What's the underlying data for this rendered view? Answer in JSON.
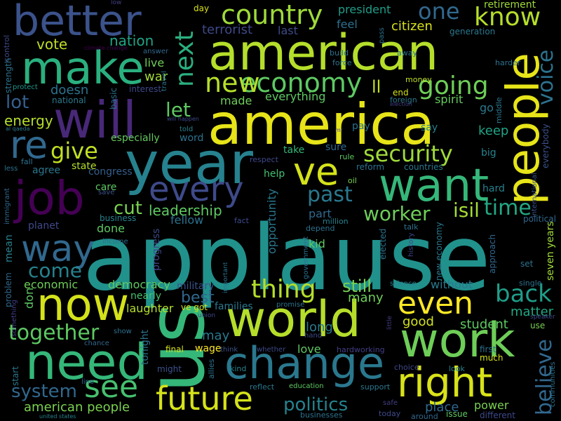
{
  "words": [
    {
      "text": "applause",
      "color": "#21918c"
    },
    {
      "text": "america",
      "color": "#e7e419"
    },
    {
      "text": "american",
      "color": "#b5de2b"
    },
    {
      "text": "us",
      "color": "#35b779"
    },
    {
      "text": "year",
      "color": "#26828e"
    },
    {
      "text": "will",
      "color": "#482878"
    },
    {
      "text": "people",
      "color": "#e7e419"
    },
    {
      "text": "world",
      "color": "#b5de2b"
    },
    {
      "text": "work",
      "color": "#6ece58"
    },
    {
      "text": "change",
      "color": "#2a788e"
    },
    {
      "text": "need",
      "color": "#35b779"
    },
    {
      "text": "now",
      "color": "#d4e21a"
    },
    {
      "text": "want",
      "color": "#35b779"
    },
    {
      "text": "make",
      "color": "#2ab07f"
    },
    {
      "text": "right",
      "color": "#d8e219"
    },
    {
      "text": "job",
      "color": "#440154"
    },
    {
      "text": "better",
      "color": "#3b528b"
    },
    {
      "text": "ve",
      "color": "#d4e21a"
    },
    {
      "text": "future",
      "color": "#d4e21a"
    },
    {
      "text": "re",
      "color": "#31688e"
    },
    {
      "text": "every",
      "color": "#3e4a89"
    },
    {
      "text": "way",
      "color": "#31688e"
    },
    {
      "text": "see",
      "color": "#46c06f"
    },
    {
      "text": "country",
      "color": "#9fda3a"
    },
    {
      "text": "even",
      "color": "#fde725"
    },
    {
      "text": "security",
      "color": "#a0da39"
    },
    {
      "text": "economy",
      "color": "#5ec962"
    },
    {
      "text": "going",
      "color": "#6ece58"
    },
    {
      "text": "thing",
      "color": "#b5de2b"
    },
    {
      "text": "believe",
      "color": "#31688e"
    },
    {
      "text": "give",
      "color": "#c2df23"
    },
    {
      "text": "back",
      "color": "#1f9e89"
    },
    {
      "text": "past",
      "color": "#2a788e"
    },
    {
      "text": "one",
      "color": "#31688e"
    },
    {
      "text": "know",
      "color": "#b5de2b"
    },
    {
      "text": "next",
      "color": "#2ab07f"
    },
    {
      "text": "new",
      "color": "#b5de2b"
    },
    {
      "text": "time",
      "color": "#22a884"
    },
    {
      "text": "voice",
      "color": "#2c728e"
    },
    {
      "text": "together",
      "color": "#5ec962"
    },
    {
      "text": "politics",
      "color": "#26828e"
    },
    {
      "text": "system",
      "color": "#31688e"
    },
    {
      "text": "isil",
      "color": "#a5db36"
    },
    {
      "text": "worker",
      "color": "#6ece58"
    },
    {
      "text": "cut",
      "color": "#7ad151"
    },
    {
      "text": "come",
      "color": "#26828e"
    },
    {
      "text": "let",
      "color": "#5ec962"
    },
    {
      "text": "still",
      "color": "#7ad151"
    },
    {
      "text": "ll",
      "color": "#c2df23"
    },
    {
      "text": "leadership",
      "color": "#5ec962"
    },
    {
      "text": "lot",
      "color": "#355f8d"
    },
    {
      "text": "energy",
      "color": "#b5de2b"
    },
    {
      "text": "vote",
      "color": "#bddf26"
    },
    {
      "text": "nation",
      "color": "#20a486"
    },
    {
      "text": "terrorist",
      "color": "#3e4989"
    },
    {
      "text": "last",
      "color": "#3e4a89"
    },
    {
      "text": "president",
      "color": "#1f9e89"
    },
    {
      "text": "citizen",
      "color": "#d8e219"
    },
    {
      "text": "feel",
      "color": "#2c728e"
    },
    {
      "text": "generation",
      "color": "#2a788e"
    },
    {
      "text": "retirement",
      "color": "#9fda3a"
    },
    {
      "text": "day",
      "color": "#d8e219"
    },
    {
      "text": "low",
      "color": "#433e85"
    },
    {
      "text": "control",
      "color": "#3e4989"
    },
    {
      "text": "climate change",
      "color": "#440154"
    },
    {
      "text": "answer",
      "color": "#31688e"
    },
    {
      "text": "live",
      "color": "#6ece58"
    },
    {
      "text": "war",
      "color": "#a0da39"
    },
    {
      "text": "doesn",
      "color": "#2c728e"
    },
    {
      "text": "interest",
      "color": "#3e4989"
    },
    {
      "text": "national",
      "color": "#2a788e"
    },
    {
      "text": "protect",
      "color": "#1f968b"
    },
    {
      "text": "strength",
      "color": "#2c728e"
    },
    {
      "text": "basic",
      "color": "#2c728e"
    },
    {
      "text": "middle",
      "color": "#2a788e"
    },
    {
      "text": "made",
      "color": "#6ece58"
    },
    {
      "text": "everything",
      "color": "#5ec962"
    },
    {
      "text": "money",
      "color": "#bddf26"
    },
    {
      "text": "end",
      "color": "#d4e21a"
    },
    {
      "text": "foreign",
      "color": "#2a788e"
    },
    {
      "text": "spirit",
      "color": "#65cb5e"
    },
    {
      "text": "election",
      "color": "#433e85"
    },
    {
      "text": "pay",
      "color": "#2c728e"
    },
    {
      "text": "say",
      "color": "#26828e"
    },
    {
      "text": "keep",
      "color": "#20a486"
    },
    {
      "text": "go",
      "color": "#2a788e"
    },
    {
      "text": "everybody",
      "color": "#3b528b"
    },
    {
      "text": "especially",
      "color": "#65cb5e"
    },
    {
      "text": "word",
      "color": "#2c728e"
    },
    {
      "text": "sure",
      "color": "#31688e"
    },
    {
      "text": "take",
      "color": "#35b779"
    },
    {
      "text": "big",
      "color": "#26828e"
    },
    {
      "text": "state",
      "color": "#b5de2b"
    },
    {
      "text": "agree",
      "color": "#2a788e"
    },
    {
      "text": "congress",
      "color": "#355f8d"
    },
    {
      "text": "help",
      "color": "#46c06f"
    },
    {
      "text": "reform",
      "color": "#2c728e"
    },
    {
      "text": "countries",
      "color": "#2a788e"
    },
    {
      "text": "respect",
      "color": "#3e4989"
    },
    {
      "text": "rule",
      "color": "#5ec962"
    },
    {
      "text": "oil",
      "color": "#7ad151"
    },
    {
      "text": "care",
      "color": "#5ec962"
    },
    {
      "text": "save",
      "color": "#3b528b"
    },
    {
      "text": "immigrant",
      "color": "#31688e"
    },
    {
      "text": "planet",
      "color": "#3e4989"
    },
    {
      "text": "business",
      "color": "#26828e"
    },
    {
      "text": "done",
      "color": "#5ec962"
    },
    {
      "text": "fellow",
      "color": "#2c728e"
    },
    {
      "text": "fact",
      "color": "#3e4989"
    },
    {
      "text": "part",
      "color": "#31688e"
    },
    {
      "text": "million",
      "color": "#26828e"
    },
    {
      "text": "depend",
      "color": "#2c728e"
    },
    {
      "text": "opportunity",
      "color": "#2a788e"
    },
    {
      "text": "elected",
      "color": "#2c728e"
    },
    {
      "text": "talk",
      "color": "#2c728e"
    },
    {
      "text": "hard",
      "color": "#26828e"
    },
    {
      "text": "international",
      "color": "#3b528b"
    },
    {
      "text": "political",
      "color": "#31688e"
    },
    {
      "text": "mean",
      "color": "#26828e"
    },
    {
      "text": "income",
      "color": "#2c728e"
    },
    {
      "text": "progress",
      "color": "#3e4989"
    },
    {
      "text": "kid",
      "color": "#5ec962"
    },
    {
      "text": "history",
      "color": "#3e4989"
    },
    {
      "text": "new economy",
      "color": "#2a788e"
    },
    {
      "text": "approach",
      "color": "#31688e"
    },
    {
      "text": "set",
      "color": "#2c728e"
    },
    {
      "text": "seven years",
      "color": "#a0da39"
    },
    {
      "text": "economic",
      "color": "#6ece58"
    },
    {
      "text": "democracy",
      "color": "#5ec962"
    },
    {
      "text": "military",
      "color": "#3b528b"
    },
    {
      "text": "nearly",
      "color": "#46c06f"
    },
    {
      "text": "best",
      "color": "#31688e"
    },
    {
      "text": "government",
      "color": "#2c728e"
    },
    {
      "text": "science",
      "color": "#26828e"
    },
    {
      "text": "without",
      "color": "#2a788e"
    },
    {
      "text": "single",
      "color": "#2c728e"
    },
    {
      "text": "many",
      "color": "#6ece58"
    },
    {
      "text": "matter",
      "color": "#22a884"
    },
    {
      "text": "problem",
      "color": "#31688e"
    },
    {
      "text": "don",
      "color": "#5ec962"
    },
    {
      "text": "something",
      "color": "#433e85"
    },
    {
      "text": "laughter",
      "color": "#b5de2b"
    },
    {
      "text": "ve got",
      "color": "#d8e219"
    },
    {
      "text": "families",
      "color": "#2a788e"
    },
    {
      "text": "promise",
      "color": "#2c728e"
    },
    {
      "text": "union",
      "color": "#3e4989"
    },
    {
      "text": "long",
      "color": "#2a788e"
    },
    {
      "text": "hand",
      "color": "#3e4989"
    },
    {
      "text": "good",
      "color": "#d4e21a"
    },
    {
      "text": "student",
      "color": "#5ec962"
    },
    {
      "text": "use",
      "color": "#7ad151"
    },
    {
      "text": "speaker",
      "color": "#3e4989"
    },
    {
      "text": "show",
      "color": "#2c728e"
    },
    {
      "text": "chance",
      "color": "#31688e"
    },
    {
      "text": "tonight",
      "color": "#2c728e"
    },
    {
      "text": "may",
      "color": "#2a788e"
    },
    {
      "text": "little",
      "color": "#433e85"
    },
    {
      "text": "final",
      "color": "#d4e21a"
    },
    {
      "text": "wage",
      "color": "#fde725"
    },
    {
      "text": "think",
      "color": "#3b528b"
    },
    {
      "text": "whether",
      "color": "#3e4989"
    },
    {
      "text": "love",
      "color": "#5ec962"
    },
    {
      "text": "hardworking",
      "color": "#433e85"
    },
    {
      "text": "first",
      "color": "#2c728e"
    },
    {
      "text": "much",
      "color": "#d4e21a"
    },
    {
      "text": "communities",
      "color": "#2c728e"
    },
    {
      "text": "start",
      "color": "#2a788e"
    },
    {
      "text": "line",
      "color": "#31688e"
    },
    {
      "text": "might",
      "color": "#3b528b"
    },
    {
      "text": "allies",
      "color": "#2c728e"
    },
    {
      "text": "kind",
      "color": "#26828e"
    },
    {
      "text": "choice",
      "color": "#3e4989"
    },
    {
      "text": "look",
      "color": "#26828e"
    },
    {
      "text": "reflect",
      "color": "#2a788e"
    },
    {
      "text": "education",
      "color": "#5ec962"
    },
    {
      "text": "support",
      "color": "#2a788e"
    },
    {
      "text": "american people",
      "color": "#7ad151"
    },
    {
      "text": "place",
      "color": "#31688e"
    },
    {
      "text": "issue",
      "color": "#5ec962"
    },
    {
      "text": "power",
      "color": "#7ad151"
    },
    {
      "text": "different",
      "color": "#3e4989"
    },
    {
      "text": "today",
      "color": "#3e4989"
    },
    {
      "text": "around",
      "color": "#31688e"
    },
    {
      "text": "businesses",
      "color": "#2c728e"
    },
    {
      "text": "united states",
      "color": "#26828e"
    },
    {
      "text": "safe",
      "color": "#433e85"
    },
    {
      "text": "al qaeda",
      "color": "#2a788e"
    },
    {
      "text": "fall",
      "color": "#2c728e"
    },
    {
      "text": "less",
      "color": "#2c728e"
    },
    {
      "text": "build",
      "color": "#2c728e"
    },
    {
      "text": "force",
      "color": "#2c728e"
    },
    {
      "text": "pass",
      "color": "#2c728e"
    },
    {
      "text": "away",
      "color": "#2c728e"
    },
    {
      "text": "harder",
      "color": "#2c728e"
    },
    {
      "text": "travel",
      "color": "#2c728e"
    },
    {
      "text": "will happen",
      "color": "#3e4989"
    },
    {
      "text": "told",
      "color": "#26828e"
    },
    {
      "text": "mr",
      "color": "#433e85"
    },
    {
      "text": "important",
      "color": "#2c728e"
    }
  ]
}
